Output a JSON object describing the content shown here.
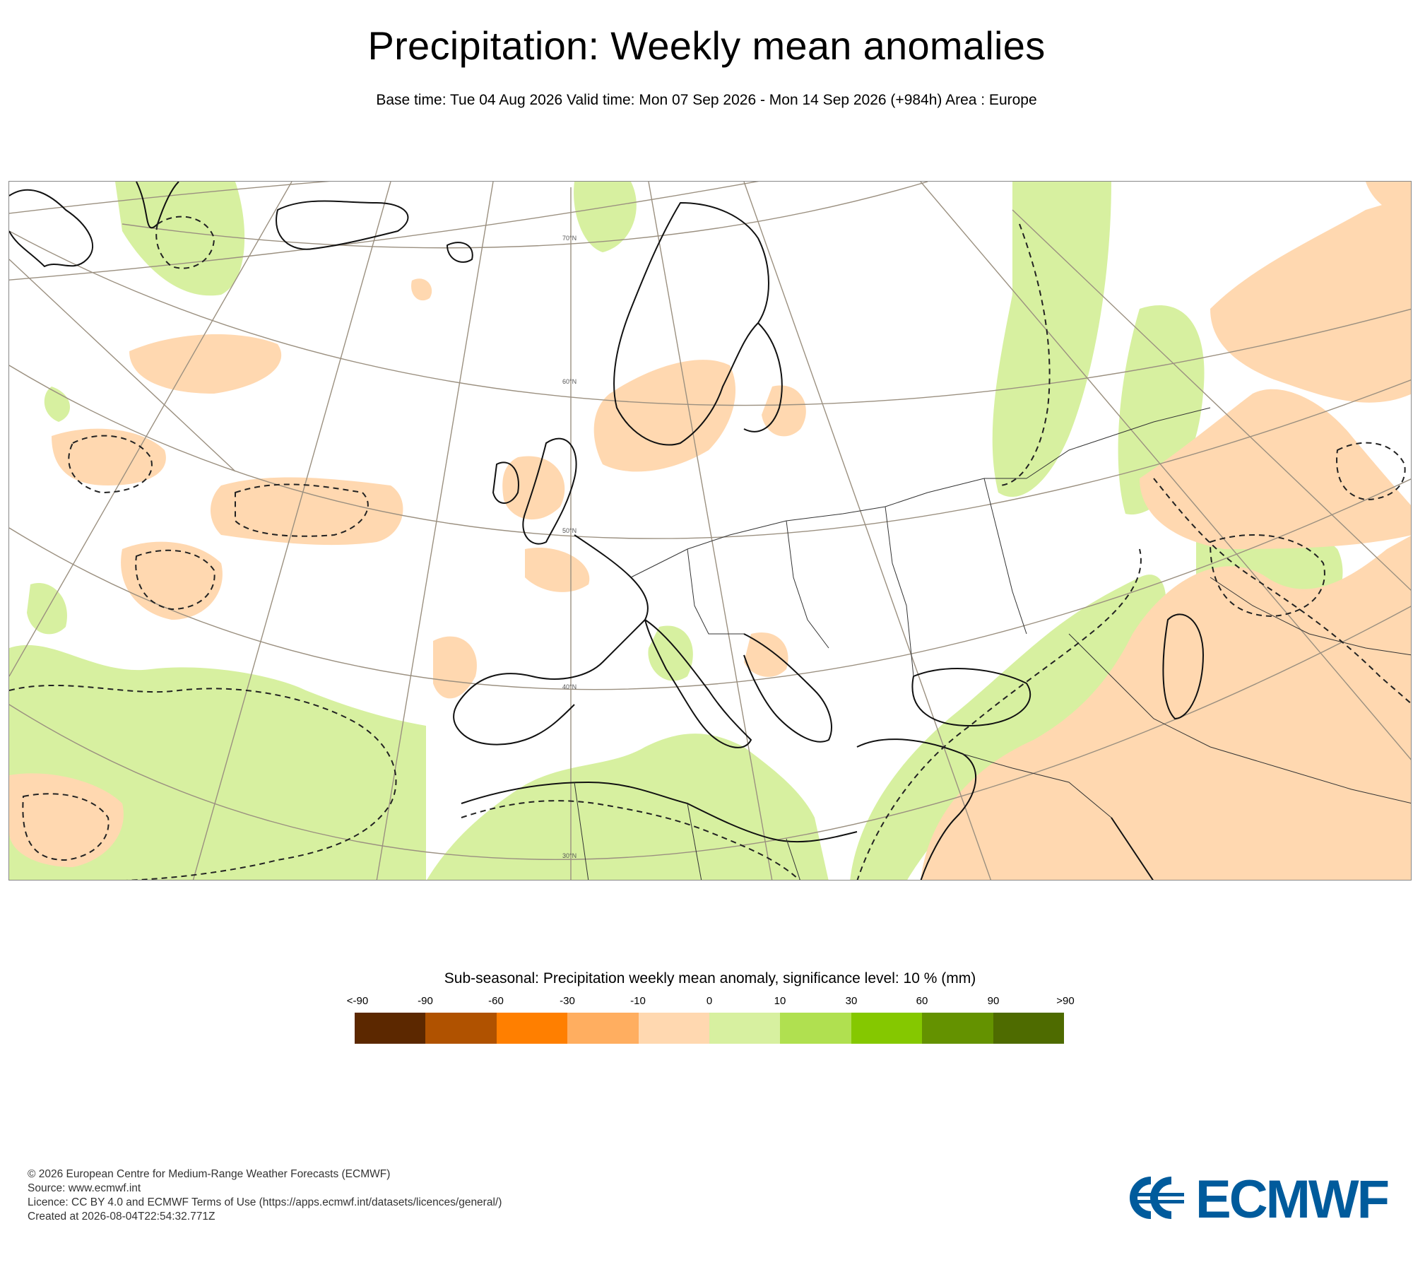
{
  "header": {
    "title": "Precipitation: Weekly mean anomalies",
    "subtitle": "Base time: Tue 04 Aug 2026 Valid time: Mon 07 Sep 2026 - Mon 14 Sep 2026 (+984h) Area : Europe"
  },
  "map": {
    "latitude_labels": [
      "70°N",
      "60°N",
      "50°N",
      "40°N",
      "30°N"
    ],
    "colors": {
      "dry_light": "#ffd8b0",
      "wet_light": "#d7f0a0",
      "coast": "#111111",
      "border": "#333333",
      "graticule": "#9b9080"
    }
  },
  "legend": {
    "title": "Sub-seasonal: Precipitation weekly mean anomaly, significance level: 10 % (mm)",
    "ticks": [
      "<-90",
      "-90",
      "-60",
      "-30",
      "-10",
      "0",
      "10",
      "30",
      "60",
      "90",
      ">90"
    ],
    "colors": [
      "#5c2800",
      "#b05200",
      "#ff7f00",
      "#ffae60",
      "#ffd8b0",
      "#d7f0a0",
      "#b0e050",
      "#85c800",
      "#649200",
      "#4e6b00"
    ]
  },
  "footer": {
    "line1": "© 2026 European Centre for Medium-Range Weather Forecasts (ECMWF)",
    "line2": "Source: www.ecmwf.int",
    "line3": "Licence: CC BY 4.0 and ECMWF Terms of Use (https://apps.ecmwf.int/datasets/licences/general/)",
    "line4": "Created at 2026-08-04T22:54:32.771Z"
  },
  "logo": {
    "text": "ECMWF",
    "color": "#005b9c"
  }
}
